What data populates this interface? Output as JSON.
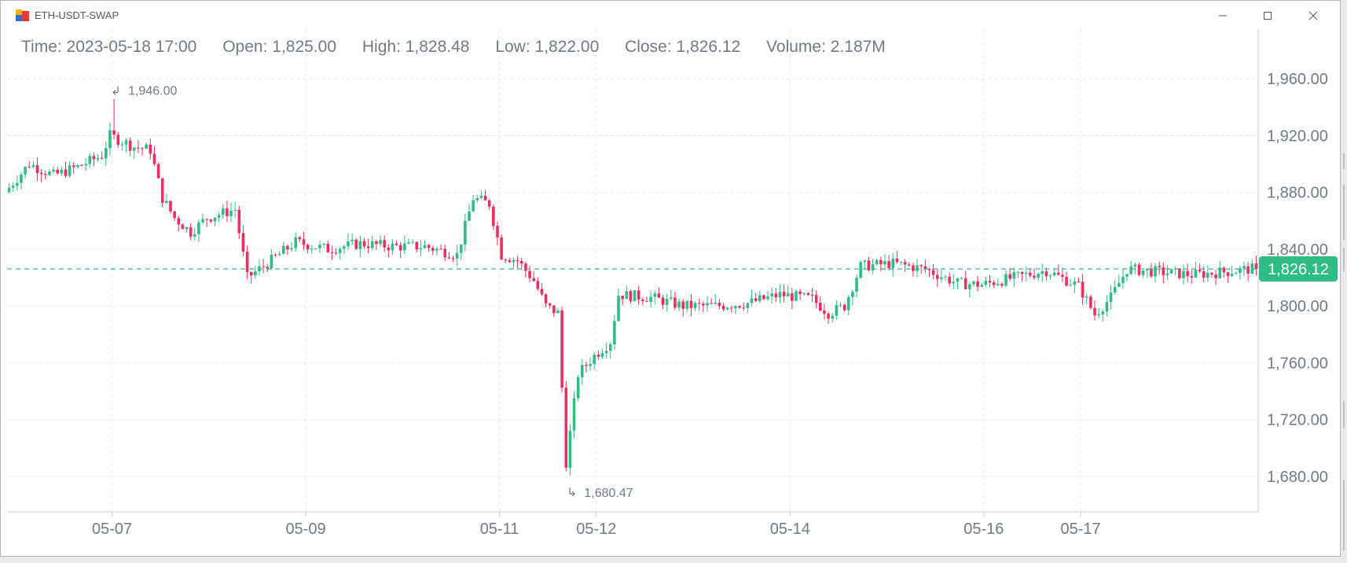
{
  "window": {
    "title": "ETH-USDT-SWAP",
    "icons": {
      "app": "app-logo-icon",
      "minimize": "minimize-icon",
      "maximize": "maximize-icon",
      "close": "close-icon"
    }
  },
  "legend": {
    "time": "Time: 2023-05-18 17:00",
    "open": "Open: 1,825.00",
    "high": "High: 1,828.48",
    "low": "Low: 1,822.00",
    "close": "Close: 1,826.12",
    "volume": "Volume: 2.187M"
  },
  "colors": {
    "up": "#2ebd85",
    "down": "#ef2d5e",
    "grid": "#e6e6e6",
    "axis_text": "#6d7b8c",
    "price_tag": "#2ebd85"
  },
  "chart_data": {
    "type": "candlestick",
    "title": "",
    "ylim": [
      1655,
      1995
    ],
    "y_ticks": [
      {
        "value": 1960,
        "label": "1,960.00"
      },
      {
        "value": 1920,
        "label": "1,920.00"
      },
      {
        "value": 1880,
        "label": "1,880.00"
      },
      {
        "value": 1840,
        "label": "1,840.00"
      },
      {
        "value": 1800,
        "label": "1,800.00"
      },
      {
        "value": 1760,
        "label": "1,760.00"
      },
      {
        "value": 1720,
        "label": "1,720.00"
      },
      {
        "value": 1680,
        "label": "1,680.00"
      }
    ],
    "x_ticks": [
      {
        "date": "2023-05-06 22:00",
        "label": "05-07"
      },
      {
        "date": "2023-05-08 22:00",
        "label": "05-09"
      },
      {
        "date": "2023-05-10 22:00",
        "label": "05-11"
      },
      {
        "date": "2023-05-11 22:00",
        "label": "05-12"
      },
      {
        "date": "2023-05-13 22:00",
        "label": "05-14"
      },
      {
        "date": "2023-05-15 22:00",
        "label": "05-16"
      },
      {
        "date": "2023-05-16 22:00",
        "label": "05-17"
      }
    ],
    "x_start": "2023-05-05 20:00",
    "x_end": "2023-05-18 18:00",
    "last_price": 1826.12,
    "last_price_label": "1,826.12",
    "max_marker": {
      "date": "2023-05-06 22:00",
      "value": 1946.0,
      "label": "1,946.00"
    },
    "min_marker": {
      "date": "2023-05-11 15:00",
      "value": 1680.47,
      "label": "1,680.47"
    },
    "price_path": [
      [
        "2023-05-05 20:00",
        1880
      ],
      [
        "2023-05-06 02:00",
        1900
      ],
      [
        "2023-05-06 08:00",
        1892
      ],
      [
        "2023-05-06 14:00",
        1898
      ],
      [
        "2023-05-06 20:00",
        1906
      ],
      [
        "2023-05-06 22:00",
        1920
      ],
      [
        "2023-05-07 04:00",
        1912
      ],
      [
        "2023-05-07 08:00",
        1910
      ],
      [
        "2023-05-07 11:00",
        1876
      ],
      [
        "2023-05-07 14:00",
        1862
      ],
      [
        "2023-05-07 18:00",
        1852
      ],
      [
        "2023-05-07 22:00",
        1862
      ],
      [
        "2023-05-08 05:00",
        1868
      ],
      [
        "2023-05-08 08:00",
        1820
      ],
      [
        "2023-05-08 12:00",
        1828
      ],
      [
        "2023-05-08 20:00",
        1845
      ],
      [
        "2023-05-09 04:00",
        1840
      ],
      [
        "2023-05-09 12:00",
        1844
      ],
      [
        "2023-05-09 20:00",
        1842
      ],
      [
        "2023-05-10 04:00",
        1842
      ],
      [
        "2023-05-10 12:00",
        1836
      ],
      [
        "2023-05-10 16:00",
        1876
      ],
      [
        "2023-05-10 20:00",
        1872
      ],
      [
        "2023-05-10 23:00",
        1836
      ],
      [
        "2023-05-11 03:00",
        1832
      ],
      [
        "2023-05-11 07:00",
        1818
      ],
      [
        "2023-05-11 10:00",
        1800
      ],
      [
        "2023-05-11 13:00",
        1795
      ],
      [
        "2023-05-11 15:00",
        1690
      ],
      [
        "2023-05-11 18:00",
        1752
      ],
      [
        "2023-05-11 22:00",
        1765
      ],
      [
        "2023-05-12 02:00",
        1775
      ],
      [
        "2023-05-12 04:00",
        1808
      ],
      [
        "2023-05-12 12:00",
        1806
      ],
      [
        "2023-05-12 20:00",
        1800
      ],
      [
        "2023-05-13 04:00",
        1800
      ],
      [
        "2023-05-13 12:00",
        1802
      ],
      [
        "2023-05-13 20:00",
        1808
      ],
      [
        "2023-05-14 04:00",
        1805
      ],
      [
        "2023-05-14 08:00",
        1795
      ],
      [
        "2023-05-14 12:00",
        1800
      ],
      [
        "2023-05-14 16:00",
        1828
      ],
      [
        "2023-05-15 00:00",
        1830
      ],
      [
        "2023-05-15 08:00",
        1826
      ],
      [
        "2023-05-15 16:00",
        1816
      ],
      [
        "2023-05-15 22:00",
        1815
      ],
      [
        "2023-05-16 06:00",
        1820
      ],
      [
        "2023-05-16 14:00",
        1825
      ],
      [
        "2023-05-16 22:00",
        1814
      ],
      [
        "2023-05-17 02:00",
        1794
      ],
      [
        "2023-05-17 06:00",
        1806
      ],
      [
        "2023-05-17 10:00",
        1826
      ],
      [
        "2023-05-17 18:00",
        1824
      ],
      [
        "2023-05-18 02:00",
        1822
      ],
      [
        "2023-05-18 10:00",
        1824
      ],
      [
        "2023-05-18 17:00",
        1826.12
      ]
    ]
  }
}
